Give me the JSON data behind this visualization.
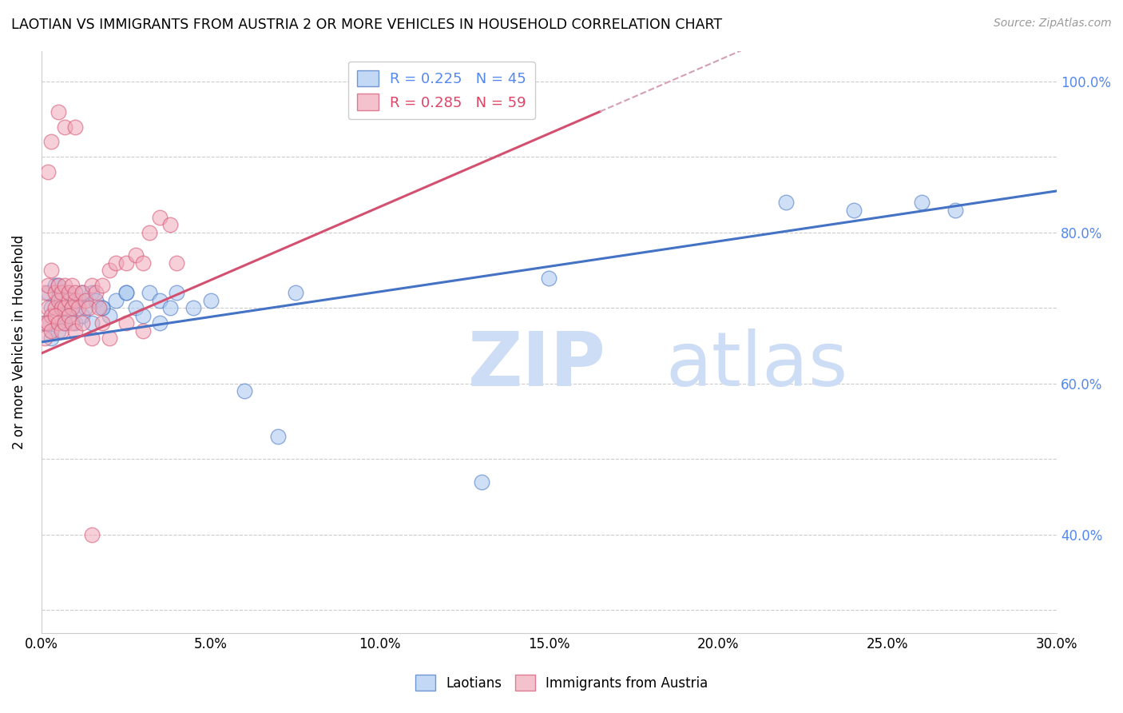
{
  "title": "LAOTIAN VS IMMIGRANTS FROM AUSTRIA 2 OR MORE VEHICLES IN HOUSEHOLD CORRELATION CHART",
  "source": "Source: ZipAtlas.com",
  "ylabel": "2 or more Vehicles in Household",
  "yaxis_right_color": "#5588ee",
  "legend_r1": "R = 0.225",
  "legend_n1": "N = 45",
  "legend_r2": "R = 0.285",
  "legend_n2": "N = 59",
  "color_blue": "#a8c8f0",
  "color_pink": "#f0a8b8",
  "line_blue": "#4472c4",
  "line_pink": "#d45070",
  "line_pink_dashed": "#d4a0b0",
  "watermark_zip": "ZIP",
  "watermark_atlas": "atlas",
  "watermark_color": "#ccddf5",
  "blue_x": [
    0.001,
    0.002,
    0.003,
    0.004,
    0.005,
    0.006,
    0.007,
    0.008,
    0.009,
    0.01,
    0.011,
    0.012,
    0.013,
    0.015,
    0.016,
    0.018,
    0.02,
    0.022,
    0.025,
    0.028,
    0.03,
    0.032,
    0.035,
    0.038,
    0.04,
    0.045,
    0.05,
    0.06,
    0.07,
    0.13,
    0.15,
    0.22,
    0.24,
    0.26,
    0.27,
    0.003,
    0.005,
    0.007,
    0.009,
    0.012,
    0.015,
    0.018,
    0.025,
    0.035,
    0.075
  ],
  "blue_y": [
    0.68,
    0.72,
    0.7,
    0.73,
    0.67,
    0.71,
    0.69,
    0.72,
    0.7,
    0.68,
    0.71,
    0.69,
    0.7,
    0.72,
    0.71,
    0.7,
    0.69,
    0.71,
    0.72,
    0.7,
    0.69,
    0.72,
    0.71,
    0.7,
    0.72,
    0.7,
    0.71,
    0.59,
    0.53,
    0.47,
    0.74,
    0.84,
    0.83,
    0.84,
    0.83,
    0.66,
    0.73,
    0.68,
    0.7,
    0.72,
    0.68,
    0.7,
    0.72,
    0.68,
    0.72
  ],
  "pink_x": [
    0.001,
    0.001,
    0.002,
    0.002,
    0.003,
    0.003,
    0.004,
    0.004,
    0.005,
    0.005,
    0.006,
    0.006,
    0.007,
    0.007,
    0.008,
    0.008,
    0.009,
    0.009,
    0.01,
    0.01,
    0.011,
    0.012,
    0.013,
    0.014,
    0.015,
    0.016,
    0.017,
    0.018,
    0.02,
    0.022,
    0.025,
    0.028,
    0.03,
    0.032,
    0.035,
    0.038,
    0.04,
    0.001,
    0.002,
    0.003,
    0.004,
    0.005,
    0.006,
    0.007,
    0.008,
    0.009,
    0.01,
    0.012,
    0.015,
    0.018,
    0.02,
    0.025,
    0.03,
    0.002,
    0.003,
    0.005,
    0.007,
    0.01,
    0.015
  ],
  "pink_y": [
    0.68,
    0.72,
    0.7,
    0.73,
    0.69,
    0.75,
    0.7,
    0.72,
    0.71,
    0.73,
    0.7,
    0.72,
    0.7,
    0.73,
    0.71,
    0.72,
    0.7,
    0.73,
    0.71,
    0.72,
    0.7,
    0.72,
    0.71,
    0.7,
    0.73,
    0.72,
    0.7,
    0.73,
    0.75,
    0.76,
    0.76,
    0.77,
    0.76,
    0.8,
    0.82,
    0.81,
    0.76,
    0.66,
    0.68,
    0.67,
    0.69,
    0.68,
    0.67,
    0.68,
    0.69,
    0.68,
    0.67,
    0.68,
    0.66,
    0.68,
    0.66,
    0.68,
    0.67,
    0.88,
    0.92,
    0.96,
    0.94,
    0.94,
    0.4
  ],
  "xlim": [
    0.0,
    0.3
  ],
  "ylim": [
    0.27,
    1.04
  ],
  "ytick_positions": [
    0.3,
    0.4,
    0.5,
    0.6,
    0.7,
    0.8,
    0.9,
    1.0
  ],
  "yright_ticks": [
    0.4,
    0.6,
    0.8,
    1.0
  ],
  "yright_labels": [
    "40.0%",
    "60.0%",
    "80.0%",
    "100.0%"
  ],
  "xticks": [
    0.0,
    0.05,
    0.1,
    0.15,
    0.2,
    0.25,
    0.3
  ],
  "xtick_labels": [
    "0.0%",
    "5.0%",
    "10.0%",
    "15.0%",
    "20.0%",
    "25.0%",
    "30.0%"
  ],
  "blue_trend_x": [
    0.0,
    0.3
  ],
  "blue_trend_y": [
    0.655,
    0.855
  ],
  "pink_trend_x": [
    0.0,
    0.165
  ],
  "pink_trend_y": [
    0.64,
    0.96
  ]
}
